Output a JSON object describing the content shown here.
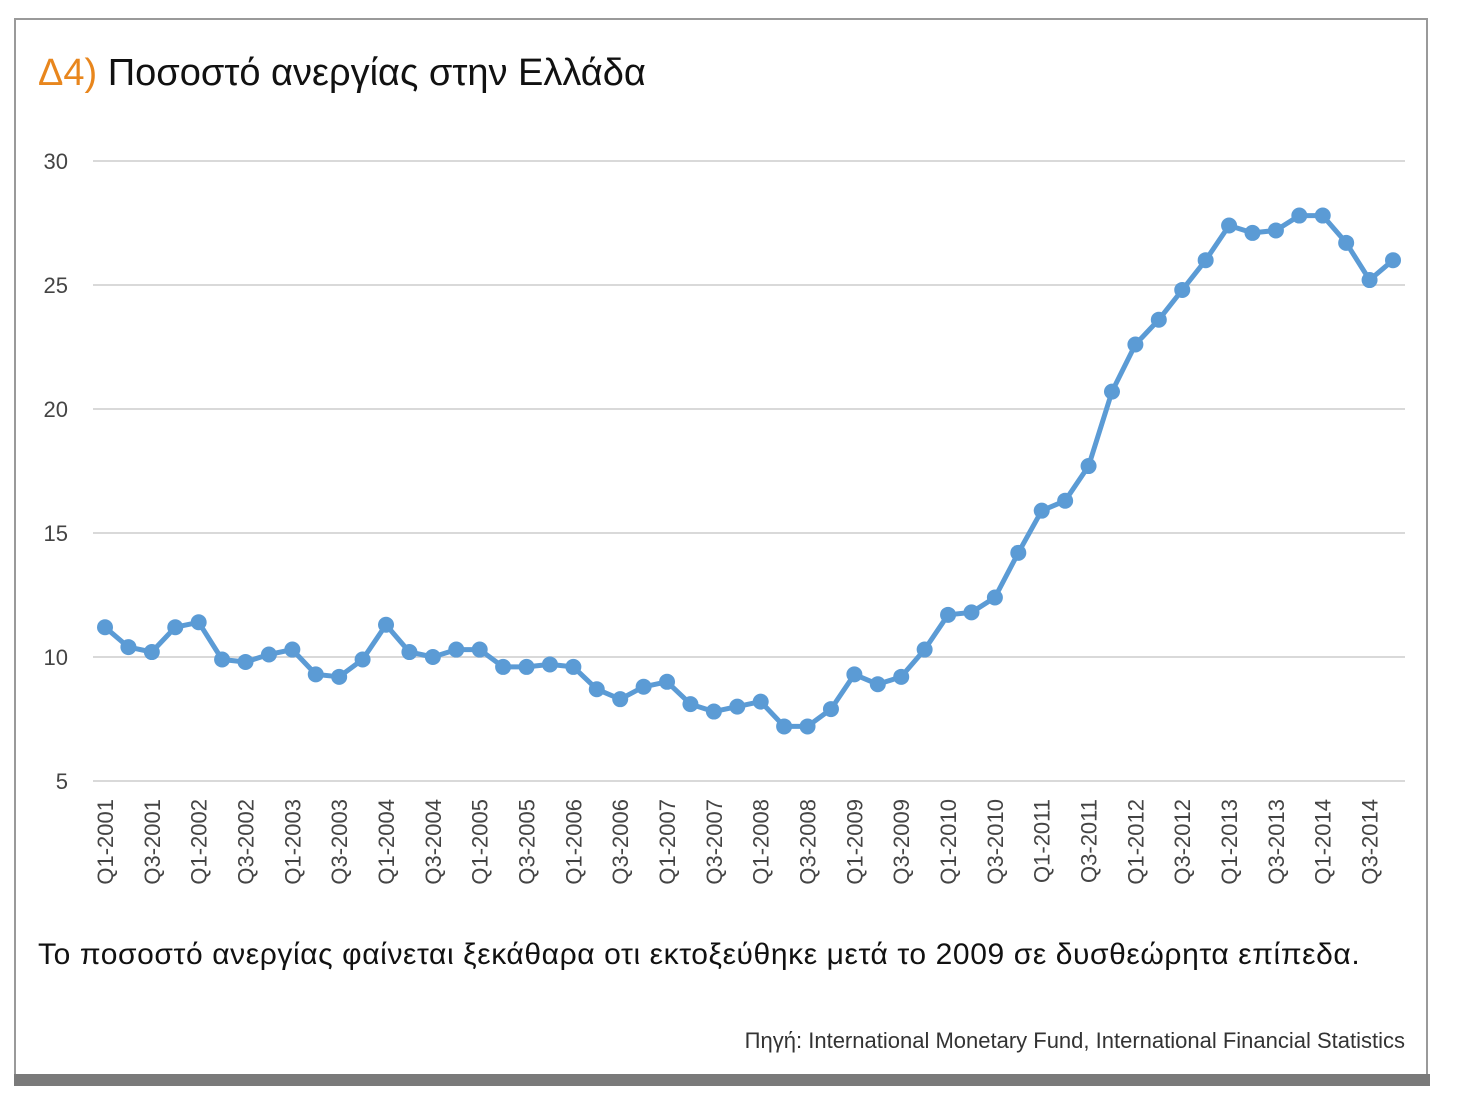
{
  "title": {
    "prefix": "Δ4)",
    "main": "Ποσοστό ανεργίας στην Ελλάδα"
  },
  "caption": "Το ποσοστό ανεργίας φαίνεται ξεκάθαρα οτι εκτοξεύθηκε μετά το 2009 σε δυσθεώρητα επίπεδα.",
  "source": "Πηγή: International Monetary Fund, International Financial Statistics",
  "colors": {
    "line": "#5b9bd5",
    "grid": "#d9d9d9",
    "accent": "#e8861d",
    "frame": "#9a9a9a"
  },
  "chart_data": {
    "type": "line",
    "title": "",
    "xlabel": "",
    "ylabel": "",
    "ylim": [
      5,
      30
    ],
    "yticks": [
      5,
      10,
      15,
      20,
      25,
      30
    ],
    "grid": true,
    "legend": "none",
    "x": [
      "Q1-2001",
      "Q2-2001",
      "Q3-2001",
      "Q4-2001",
      "Q1-2002",
      "Q2-2002",
      "Q3-2002",
      "Q4-2002",
      "Q1-2003",
      "Q2-2003",
      "Q3-2003",
      "Q4-2003",
      "Q1-2004",
      "Q2-2004",
      "Q3-2004",
      "Q4-2004",
      "Q1-2005",
      "Q2-2005",
      "Q3-2005",
      "Q4-2005",
      "Q1-2006",
      "Q2-2006",
      "Q3-2006",
      "Q4-2006",
      "Q1-2007",
      "Q2-2007",
      "Q3-2007",
      "Q4-2007",
      "Q1-2008",
      "Q2-2008",
      "Q3-2008",
      "Q4-2008",
      "Q1-2009",
      "Q2-2009",
      "Q3-2009",
      "Q4-2009",
      "Q1-2010",
      "Q2-2010",
      "Q3-2010",
      "Q4-2010",
      "Q1-2011",
      "Q2-2011",
      "Q3-2011",
      "Q4-2011",
      "Q1-2012",
      "Q2-2012",
      "Q3-2012",
      "Q4-2012",
      "Q1-2013",
      "Q2-2013",
      "Q3-2013",
      "Q4-2013",
      "Q1-2014",
      "Q2-2014",
      "Q3-2014",
      "Q4-2014"
    ],
    "tick_labels": [
      "Q1-2001",
      "Q3-2001",
      "Q1-2002",
      "Q3-2002",
      "Q1-2003",
      "Q3-2003",
      "Q1-2004",
      "Q3-2004",
      "Q1-2005",
      "Q3-2005",
      "Q1-2006",
      "Q3-2006",
      "Q1-2007",
      "Q3-2007",
      "Q1-2008",
      "Q3-2008",
      "Q1-2009",
      "Q3-2009",
      "Q1-2010",
      "Q3-2010",
      "Q1-2011",
      "Q3-2011",
      "Q1-2012",
      "Q3-2012",
      "Q1-2013",
      "Q3-2013",
      "Q1-2014",
      "Q3-2014"
    ],
    "series": [
      {
        "values": [
          11.2,
          10.4,
          10.2,
          11.2,
          11.4,
          9.9,
          9.8,
          10.1,
          10.3,
          9.3,
          9.2,
          9.9,
          11.3,
          10.2,
          10.0,
          10.3,
          10.3,
          9.6,
          9.6,
          9.7,
          9.6,
          8.7,
          8.3,
          8.8,
          9.0,
          8.1,
          7.8,
          8.0,
          8.2,
          7.2,
          7.2,
          7.9,
          9.3,
          8.9,
          9.2,
          10.3,
          11.7,
          11.8,
          12.4,
          14.2,
          15.9,
          16.3,
          17.7,
          20.7,
          22.6,
          23.6,
          24.8,
          26.0,
          27.4,
          27.1,
          27.2,
          27.8,
          27.8,
          26.7,
          25.2,
          26.0
        ]
      }
    ]
  }
}
